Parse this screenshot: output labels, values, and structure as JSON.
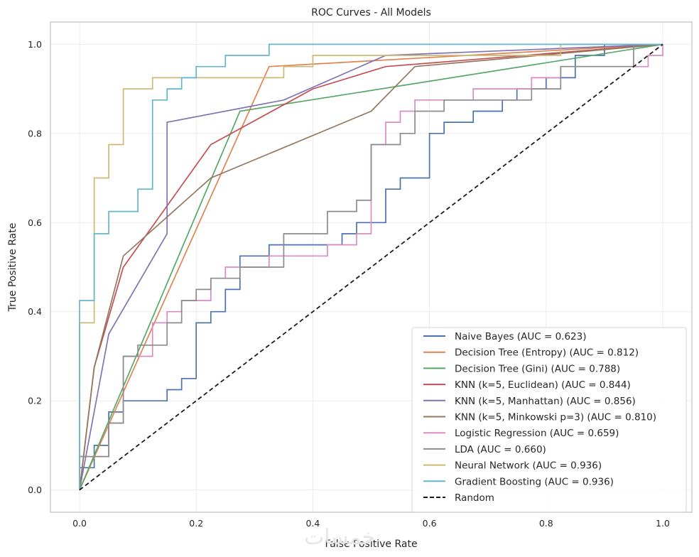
{
  "chart_data": {
    "type": "line",
    "title": "ROC Curves - All Models",
    "xlabel": "False Positive Rate",
    "ylabel": "True Positive Rate",
    "xlim": [
      -0.05,
      1.05
    ],
    "ylim": [
      -0.05,
      1.05
    ],
    "xticks": [
      0.0,
      0.2,
      0.4,
      0.6,
      0.8,
      1.0
    ],
    "xtick_labels": [
      "0.0",
      "0.2",
      "0.4",
      "0.6",
      "0.8",
      "1.0"
    ],
    "yticks": [
      0.0,
      0.2,
      0.4,
      0.6,
      0.8,
      1.0
    ],
    "ytick_labels": [
      "0.0",
      "0.2",
      "0.4",
      "0.6",
      "0.8",
      "1.0"
    ],
    "grid": true,
    "legend_position": "bottom-right",
    "watermark": "خمسات",
    "series": [
      {
        "name": "Naive Bayes (AUC = 0.623)",
        "color": "#4c72b0",
        "dashed": false,
        "points": [
          [
            0,
            0
          ],
          [
            0,
            0.05
          ],
          [
            0.025,
            0.05
          ],
          [
            0.025,
            0.1
          ],
          [
            0.05,
            0.1
          ],
          [
            0.05,
            0.175
          ],
          [
            0.075,
            0.175
          ],
          [
            0.075,
            0.2
          ],
          [
            0.15,
            0.2
          ],
          [
            0.15,
            0.225
          ],
          [
            0.175,
            0.225
          ],
          [
            0.175,
            0.25
          ],
          [
            0.2,
            0.25
          ],
          [
            0.2,
            0.375
          ],
          [
            0.225,
            0.375
          ],
          [
            0.225,
            0.4
          ],
          [
            0.25,
            0.4
          ],
          [
            0.25,
            0.45
          ],
          [
            0.275,
            0.45
          ],
          [
            0.275,
            0.525
          ],
          [
            0.325,
            0.525
          ],
          [
            0.325,
            0.55
          ],
          [
            0.45,
            0.55
          ],
          [
            0.45,
            0.575
          ],
          [
            0.475,
            0.575
          ],
          [
            0.475,
            0.6
          ],
          [
            0.525,
            0.6
          ],
          [
            0.525,
            0.675
          ],
          [
            0.55,
            0.675
          ],
          [
            0.55,
            0.7
          ],
          [
            0.6,
            0.7
          ],
          [
            0.6,
            0.8
          ],
          [
            0.625,
            0.8
          ],
          [
            0.625,
            0.825
          ],
          [
            0.675,
            0.825
          ],
          [
            0.675,
            0.85
          ],
          [
            0.725,
            0.85
          ],
          [
            0.725,
            0.875
          ],
          [
            0.75,
            0.875
          ],
          [
            0.75,
            0.9
          ],
          [
            0.8,
            0.9
          ],
          [
            0.8,
            0.925
          ],
          [
            0.85,
            0.925
          ],
          [
            0.85,
            0.975
          ],
          [
            0.9,
            0.975
          ],
          [
            0.9,
            1.0
          ],
          [
            1.0,
            1.0
          ]
        ]
      },
      {
        "name": "Decision Tree (Entropy) (AUC = 0.812)",
        "color": "#dd8452",
        "dashed": false,
        "points": [
          [
            0,
            0
          ],
          [
            0.325,
            0.95
          ],
          [
            1.0,
            1.0
          ]
        ]
      },
      {
        "name": "Decision Tree (Gini) (AUC = 0.788)",
        "color": "#55a868",
        "dashed": false,
        "points": [
          [
            0,
            0
          ],
          [
            0.275,
            0.85
          ],
          [
            1.0,
            1.0
          ]
        ]
      },
      {
        "name": "KNN (k=5, Euclidean) (AUC = 0.844)",
        "color": "#c44e52",
        "dashed": false,
        "points": [
          [
            0,
            0
          ],
          [
            0.025,
            0.275
          ],
          [
            0.075,
            0.5
          ],
          [
            0.225,
            0.775
          ],
          [
            0.4,
            0.9
          ],
          [
            0.525,
            0.95
          ],
          [
            1.0,
            1.0
          ]
        ]
      },
      {
        "name": "KNN (k=5, Manhattan) (AUC = 0.856)",
        "color": "#8172b3",
        "dashed": false,
        "points": [
          [
            0,
            0
          ],
          [
            0.05,
            0.35
          ],
          [
            0.15,
            0.575
          ],
          [
            0.15,
            0.825
          ],
          [
            0.35,
            0.875
          ],
          [
            0.525,
            0.975
          ],
          [
            1.0,
            1.0
          ]
        ]
      },
      {
        "name": "KNN (k=5, Minkowski p=3) (AUC = 0.810)",
        "color": "#937860",
        "dashed": false,
        "points": [
          [
            0,
            0
          ],
          [
            0.025,
            0.275
          ],
          [
            0.075,
            0.525
          ],
          [
            0.225,
            0.7
          ],
          [
            0.5,
            0.85
          ],
          [
            0.575,
            0.95
          ],
          [
            1.0,
            1.0
          ]
        ]
      },
      {
        "name": "Logistic Regression (AUC = 0.659)",
        "color": "#da8bc3",
        "dashed": false,
        "points": [
          [
            0,
            0
          ],
          [
            0,
            0.075
          ],
          [
            0.05,
            0.075
          ],
          [
            0.05,
            0.15
          ],
          [
            0.075,
            0.15
          ],
          [
            0.075,
            0.3
          ],
          [
            0.125,
            0.3
          ],
          [
            0.125,
            0.375
          ],
          [
            0.15,
            0.375
          ],
          [
            0.15,
            0.4
          ],
          [
            0.175,
            0.4
          ],
          [
            0.175,
            0.425
          ],
          [
            0.225,
            0.425
          ],
          [
            0.225,
            0.475
          ],
          [
            0.25,
            0.475
          ],
          [
            0.25,
            0.5
          ],
          [
            0.325,
            0.5
          ],
          [
            0.325,
            0.525
          ],
          [
            0.425,
            0.525
          ],
          [
            0.425,
            0.55
          ],
          [
            0.475,
            0.55
          ],
          [
            0.475,
            0.575
          ],
          [
            0.5,
            0.575
          ],
          [
            0.5,
            0.775
          ],
          [
            0.525,
            0.775
          ],
          [
            0.525,
            0.825
          ],
          [
            0.55,
            0.825
          ],
          [
            0.55,
            0.85
          ],
          [
            0.575,
            0.85
          ],
          [
            0.575,
            0.875
          ],
          [
            0.675,
            0.875
          ],
          [
            0.675,
            0.9
          ],
          [
            0.775,
            0.9
          ],
          [
            0.775,
            0.925
          ],
          [
            0.825,
            0.925
          ],
          [
            0.825,
            0.95
          ],
          [
            0.975,
            0.95
          ],
          [
            0.975,
            0.975
          ],
          [
            1.0,
            0.975
          ],
          [
            1.0,
            1.0
          ]
        ]
      },
      {
        "name": "LDA (AUC = 0.660)",
        "color": "#8c8c8c",
        "dashed": false,
        "points": [
          [
            0,
            0
          ],
          [
            0,
            0.075
          ],
          [
            0.05,
            0.075
          ],
          [
            0.05,
            0.15
          ],
          [
            0.075,
            0.15
          ],
          [
            0.075,
            0.3
          ],
          [
            0.1,
            0.3
          ],
          [
            0.1,
            0.325
          ],
          [
            0.15,
            0.325
          ],
          [
            0.15,
            0.375
          ],
          [
            0.175,
            0.375
          ],
          [
            0.175,
            0.425
          ],
          [
            0.2,
            0.425
          ],
          [
            0.2,
            0.45
          ],
          [
            0.225,
            0.45
          ],
          [
            0.225,
            0.475
          ],
          [
            0.275,
            0.475
          ],
          [
            0.275,
            0.5
          ],
          [
            0.35,
            0.5
          ],
          [
            0.35,
            0.575
          ],
          [
            0.425,
            0.575
          ],
          [
            0.425,
            0.625
          ],
          [
            0.475,
            0.625
          ],
          [
            0.475,
            0.65
          ],
          [
            0.5,
            0.65
          ],
          [
            0.5,
            0.775
          ],
          [
            0.55,
            0.775
          ],
          [
            0.55,
            0.8
          ],
          [
            0.575,
            0.8
          ],
          [
            0.575,
            0.85
          ],
          [
            0.625,
            0.85
          ],
          [
            0.625,
            0.875
          ],
          [
            0.775,
            0.875
          ],
          [
            0.775,
            0.9
          ],
          [
            0.825,
            0.9
          ],
          [
            0.825,
            0.95
          ],
          [
            0.95,
            0.95
          ],
          [
            0.95,
            1.0
          ],
          [
            1.0,
            1.0
          ]
        ]
      },
      {
        "name": "Neural Network (AUC = 0.936)",
        "color": "#ccb974",
        "dashed": false,
        "points": [
          [
            0,
            0
          ],
          [
            0,
            0.375
          ],
          [
            0.025,
            0.375
          ],
          [
            0.025,
            0.7
          ],
          [
            0.05,
            0.7
          ],
          [
            0.05,
            0.775
          ],
          [
            0.075,
            0.775
          ],
          [
            0.075,
            0.9
          ],
          [
            0.125,
            0.9
          ],
          [
            0.125,
            0.925
          ],
          [
            0.35,
            0.925
          ],
          [
            0.35,
            0.95
          ],
          [
            0.4,
            0.95
          ],
          [
            0.4,
            0.975
          ],
          [
            0.825,
            0.975
          ],
          [
            0.825,
            1.0
          ],
          [
            1.0,
            1.0
          ]
        ]
      },
      {
        "name": "Gradient Boosting (AUC = 0.936)",
        "color": "#64b5cd",
        "dashed": false,
        "points": [
          [
            0,
            0
          ],
          [
            0,
            0.425
          ],
          [
            0.025,
            0.425
          ],
          [
            0.025,
            0.575
          ],
          [
            0.05,
            0.575
          ],
          [
            0.05,
            0.625
          ],
          [
            0.1,
            0.625
          ],
          [
            0.1,
            0.675
          ],
          [
            0.125,
            0.675
          ],
          [
            0.125,
            0.875
          ],
          [
            0.15,
            0.875
          ],
          [
            0.15,
            0.9
          ],
          [
            0.175,
            0.9
          ],
          [
            0.175,
            0.925
          ],
          [
            0.2,
            0.925
          ],
          [
            0.2,
            0.95
          ],
          [
            0.25,
            0.95
          ],
          [
            0.25,
            0.975
          ],
          [
            0.325,
            0.975
          ],
          [
            0.325,
            1.0
          ],
          [
            1.0,
            1.0
          ]
        ]
      },
      {
        "name": "Random",
        "color": "#1a1a1a",
        "dashed": true,
        "points": [
          [
            0,
            0
          ],
          [
            1.0,
            1.0
          ]
        ]
      }
    ]
  }
}
